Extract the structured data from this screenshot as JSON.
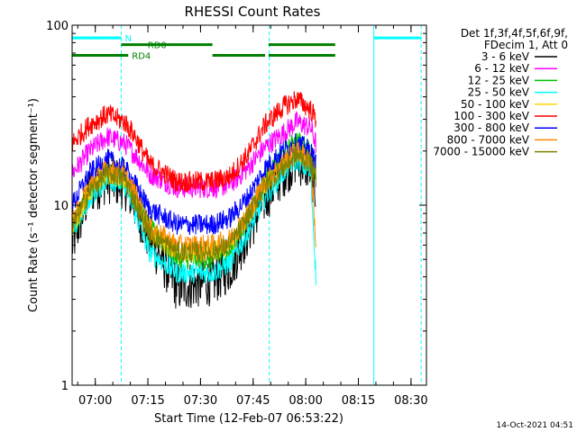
{
  "chart_data": {
    "type": "line",
    "title": "RHESSI Count Rates",
    "xlabel": "Start Time (12-Feb-07 06:53:22)",
    "ylabel": "Count Rate (s⁻¹ detector segment⁻¹)",
    "x_unit": "minutes after 06:53:22",
    "xlim": [
      0,
      101
    ],
    "ylim": [
      1,
      100
    ],
    "yscale": "log",
    "x_ticks": [
      {
        "t": 6.6,
        "label": "07:00"
      },
      {
        "t": 21.6,
        "label": "07:15"
      },
      {
        "t": 36.6,
        "label": "07:30"
      },
      {
        "t": 51.6,
        "label": "07:45"
      },
      {
        "t": 66.6,
        "label": "08:00"
      },
      {
        "t": 81.6,
        "label": "08:15"
      },
      {
        "t": 96.6,
        "label": "08:30"
      }
    ],
    "y_ticks": [
      {
        "v": 1,
        "label": "1"
      },
      {
        "v": 10,
        "label": "10"
      },
      {
        "v": 100,
        "label": "100"
      }
    ],
    "legend_header": [
      "Det 1f,3f,4f,5f,6f,9f,",
      "FDecim 1, Att 0"
    ],
    "legend_position": "right",
    "series": [
      {
        "name": "3 - 6 keV",
        "color": "#000000",
        "x": [
          0,
          5,
          10,
          15,
          18,
          22,
          30,
          40,
          45,
          50,
          55,
          60,
          64,
          68,
          69.5
        ],
        "values": [
          6,
          12,
          14,
          13,
          10,
          6.5,
          3.5,
          3.8,
          4.5,
          7,
          11,
          15,
          18,
          16,
          12
        ]
      },
      {
        "name": "6 - 12 keV",
        "color": "#ff00ff",
        "x": [
          0,
          5,
          10,
          15,
          18,
          22,
          30,
          40,
          45,
          50,
          55,
          60,
          64,
          68,
          69.5
        ],
        "values": [
          15,
          20,
          24,
          22,
          19,
          15,
          12.5,
          12.5,
          13,
          16,
          21,
          25,
          29,
          27,
          22
        ]
      },
      {
        "name": "12 - 25 keV",
        "color": "#00c000",
        "x": [
          0,
          5,
          10,
          15,
          18,
          22,
          30,
          40,
          45,
          50,
          55,
          60,
          64,
          68,
          69.5
        ],
        "values": [
          7,
          12,
          15,
          14,
          11,
          7.5,
          5,
          5,
          5.5,
          8.5,
          14,
          19,
          23,
          20,
          15
        ]
      },
      {
        "name": "25 - 50 keV",
        "color": "#00ffff",
        "x": [
          0,
          5,
          10,
          15,
          18,
          22,
          30,
          40,
          45,
          50,
          55,
          60,
          64,
          68,
          69.5
        ],
        "values": [
          7,
          11,
          14,
          13,
          9,
          5.5,
          4.2,
          4.2,
          4.8,
          7,
          11,
          15,
          18,
          15,
          4
        ]
      },
      {
        "name": "50 - 100 keV",
        "color": "#ffd700",
        "x": [
          0,
          5,
          10,
          15,
          18,
          22,
          30,
          40,
          45,
          50,
          55,
          60,
          64,
          68,
          69.5
        ],
        "values": [
          7.5,
          12,
          15,
          14,
          11,
          7,
          5.5,
          5.5,
          6,
          8.5,
          13,
          17,
          20,
          18,
          14
        ]
      },
      {
        "name": "100 - 300 keV",
        "color": "#ff0000",
        "x": [
          0,
          5,
          10,
          15,
          18,
          22,
          30,
          40,
          45,
          50,
          55,
          60,
          64,
          68,
          69.5
        ],
        "values": [
          22,
          28,
          32,
          29,
          24,
          17,
          13.5,
          13.5,
          14.5,
          19,
          28,
          35,
          39,
          34,
          30
        ]
      },
      {
        "name": "300 - 800 keV",
        "color": "#0000ff",
        "x": [
          0,
          5,
          10,
          15,
          18,
          22,
          30,
          40,
          45,
          50,
          55,
          60,
          64,
          68,
          69.5
        ],
        "values": [
          10,
          15,
          18,
          16,
          13,
          9.5,
          7.8,
          7.8,
          8.5,
          11,
          16,
          20,
          22,
          20,
          17
        ]
      },
      {
        "name": "800 - 7000 keV",
        "color": "#ff8c00",
        "x": [
          0,
          5,
          10,
          15,
          18,
          22,
          30,
          40,
          45,
          50,
          55,
          60,
          64,
          68,
          69.5
        ],
        "values": [
          8,
          13,
          16,
          14.5,
          11.5,
          7.5,
          6,
          6,
          6.5,
          9,
          13.5,
          17,
          20,
          18,
          6
        ]
      },
      {
        "name": "7000 - 15000 keV",
        "color": "#808000",
        "x": [
          0,
          5,
          10,
          15,
          18,
          22,
          30,
          40,
          45,
          50,
          55,
          60,
          64,
          68,
          69.5
        ],
        "values": [
          7.5,
          12,
          15,
          14,
          10.5,
          7,
          5.5,
          5.5,
          6,
          8.5,
          13,
          16,
          19,
          17,
          14
        ]
      }
    ],
    "annotations": [
      {
        "label": "N",
        "color": "#00ffff",
        "x1": 0,
        "x2": 14,
        "y": 85
      },
      {
        "label": "RD0",
        "color": "#008000",
        "x1": 14,
        "x2": 40,
        "y": 78
      },
      {
        "label": "RD4",
        "color": "#008000",
        "x1": 0,
        "x2": 16,
        "y": 68
      },
      {
        "label": "",
        "color": "#008000",
        "x1": 40,
        "x2": 55,
        "y": 68
      },
      {
        "label": "",
        "color": "#008000",
        "x1": 56,
        "x2": 75,
        "y": 68
      },
      {
        "label": "",
        "color": "#008000",
        "x1": 56,
        "x2": 75,
        "y": 78
      },
      {
        "label": "",
        "color": "#00ffff",
        "x1": 0,
        "x2": 14,
        "y": 85
      },
      {
        "label": "",
        "color": "#00ffff",
        "x1": 86,
        "x2": 99.5,
        "y": 85
      }
    ],
    "markers": [
      {
        "t": 0,
        "style": "solid",
        "color": "#00ffff"
      },
      {
        "t": 14,
        "style": "dashed",
        "color": "#00ffff"
      },
      {
        "t": 56.2,
        "style": "dashed",
        "color": "#00ffff"
      },
      {
        "t": 86,
        "style": "solid",
        "color": "#00ffff"
      },
      {
        "t": 99.5,
        "style": "dashed",
        "color": "#00ffff"
      }
    ],
    "grid": false
  },
  "timestamp": "14-Oct-2021 04:51"
}
